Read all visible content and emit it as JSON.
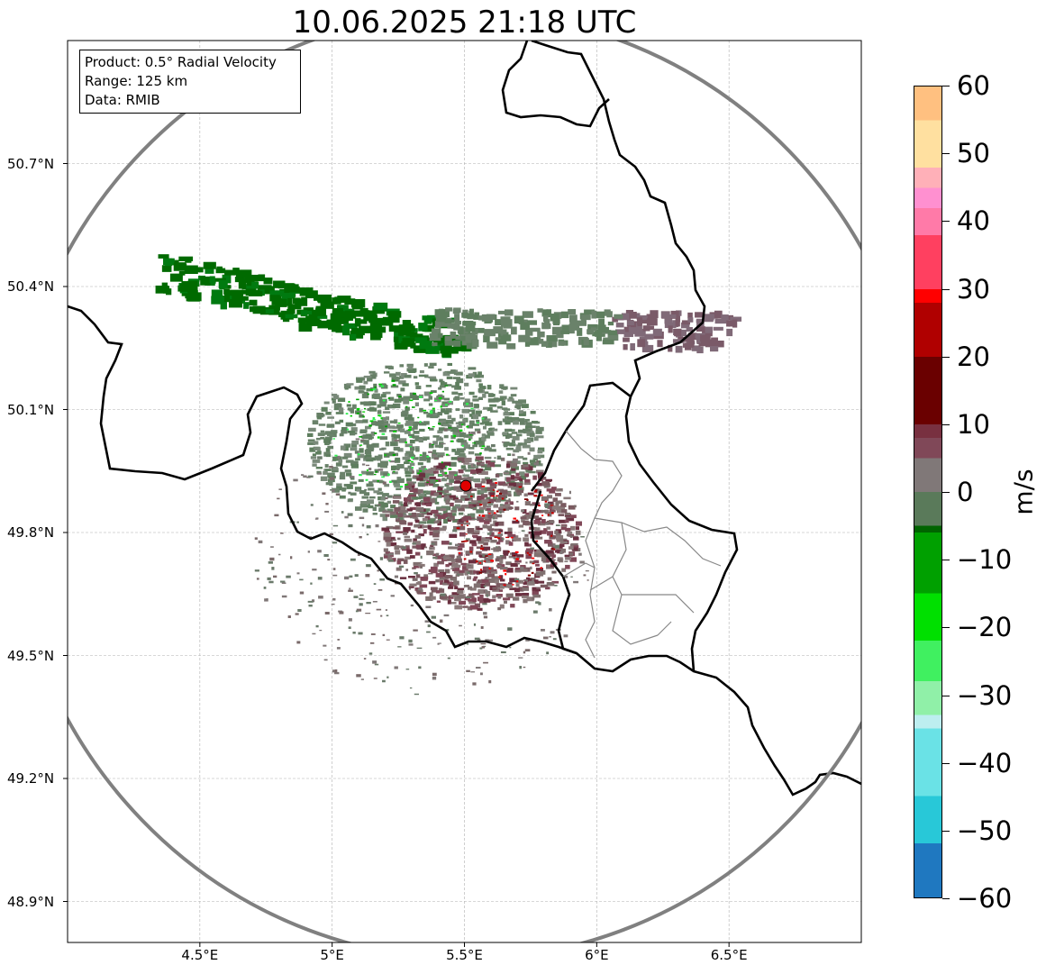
{
  "title": "10.06.2025 21:18 UTC",
  "info": {
    "product": "Product: 0.5° Radial Velocity",
    "range": "Range: 125 km",
    "data": "Data: RMIB"
  },
  "map": {
    "lon_range": [
      4.0,
      7.0
    ],
    "lat_range": [
      48.8,
      51.0
    ],
    "radar_site": {
      "lon": 5.505,
      "lat": 49.914
    },
    "range_ring_color": "#808080",
    "radar_marker_color": "#e00000",
    "lat_ticks": [
      {
        "value": 50.7,
        "label": "50.7°N"
      },
      {
        "value": 50.4,
        "label": "50.4°N"
      },
      {
        "value": 50.1,
        "label": "50.1°N"
      },
      {
        "value": 49.8,
        "label": "49.8°N"
      },
      {
        "value": 49.5,
        "label": "49.5°N"
      },
      {
        "value": 49.2,
        "label": "49.2°N"
      },
      {
        "value": 48.9,
        "label": "48.9°N"
      }
    ],
    "lon_ticks": [
      {
        "value": 4.5,
        "label": "4.5°E"
      },
      {
        "value": 5.0,
        "label": "5°E"
      },
      {
        "value": 5.5,
        "label": "5.5°E"
      },
      {
        "value": 6.0,
        "label": "6°E"
      },
      {
        "value": 6.5,
        "label": "6.5°E"
      }
    ]
  },
  "colorbar": {
    "unit": "m/s",
    "min": -60,
    "max": 60,
    "ticks": [
      {
        "value": 60,
        "label": "60"
      },
      {
        "value": 50,
        "label": "50"
      },
      {
        "value": 40,
        "label": "40"
      },
      {
        "value": 30,
        "label": "30"
      },
      {
        "value": 20,
        "label": "20"
      },
      {
        "value": 10,
        "label": "10"
      },
      {
        "value": 0,
        "label": "0"
      },
      {
        "value": -10,
        "label": "−10"
      },
      {
        "value": -20,
        "label": "−20"
      },
      {
        "value": -30,
        "label": "−30"
      },
      {
        "value": -40,
        "label": "−40"
      },
      {
        "value": -50,
        "label": "−50"
      },
      {
        "value": -60,
        "label": "−60"
      }
    ],
    "stops": [
      {
        "value": -60,
        "color": "#1f78c0"
      },
      {
        "value": -52,
        "color": "#28c8d8"
      },
      {
        "value": -45,
        "color": "#6ae2e6"
      },
      {
        "value": -35,
        "color": "#bdeef0"
      },
      {
        "value": -33,
        "color": "#90f0a8"
      },
      {
        "value": -28,
        "color": "#40f060"
      },
      {
        "value": -22,
        "color": "#00e000"
      },
      {
        "value": -15,
        "color": "#00a000"
      },
      {
        "value": -6,
        "color": "#006400"
      },
      {
        "value": -5,
        "color": "#5a7a5a"
      },
      {
        "value": 0,
        "color": "#807878"
      },
      {
        "value": 5,
        "color": "#804858"
      },
      {
        "value": 8,
        "color": "#783040"
      },
      {
        "value": 10,
        "color": "#6a0000"
      },
      {
        "value": 20,
        "color": "#b00000"
      },
      {
        "value": 28,
        "color": "#ff0000"
      },
      {
        "value": 30,
        "color": "#ff4060"
      },
      {
        "value": 38,
        "color": "#ff7aa8"
      },
      {
        "value": 42,
        "color": "#ff90d0"
      },
      {
        "value": 45,
        "color": "#ffb0b8"
      },
      {
        "value": 48,
        "color": "#ffe0a0"
      },
      {
        "value": 55,
        "color": "#ffc080"
      },
      {
        "value": 60,
        "color": "#ff9c58"
      }
    ]
  }
}
